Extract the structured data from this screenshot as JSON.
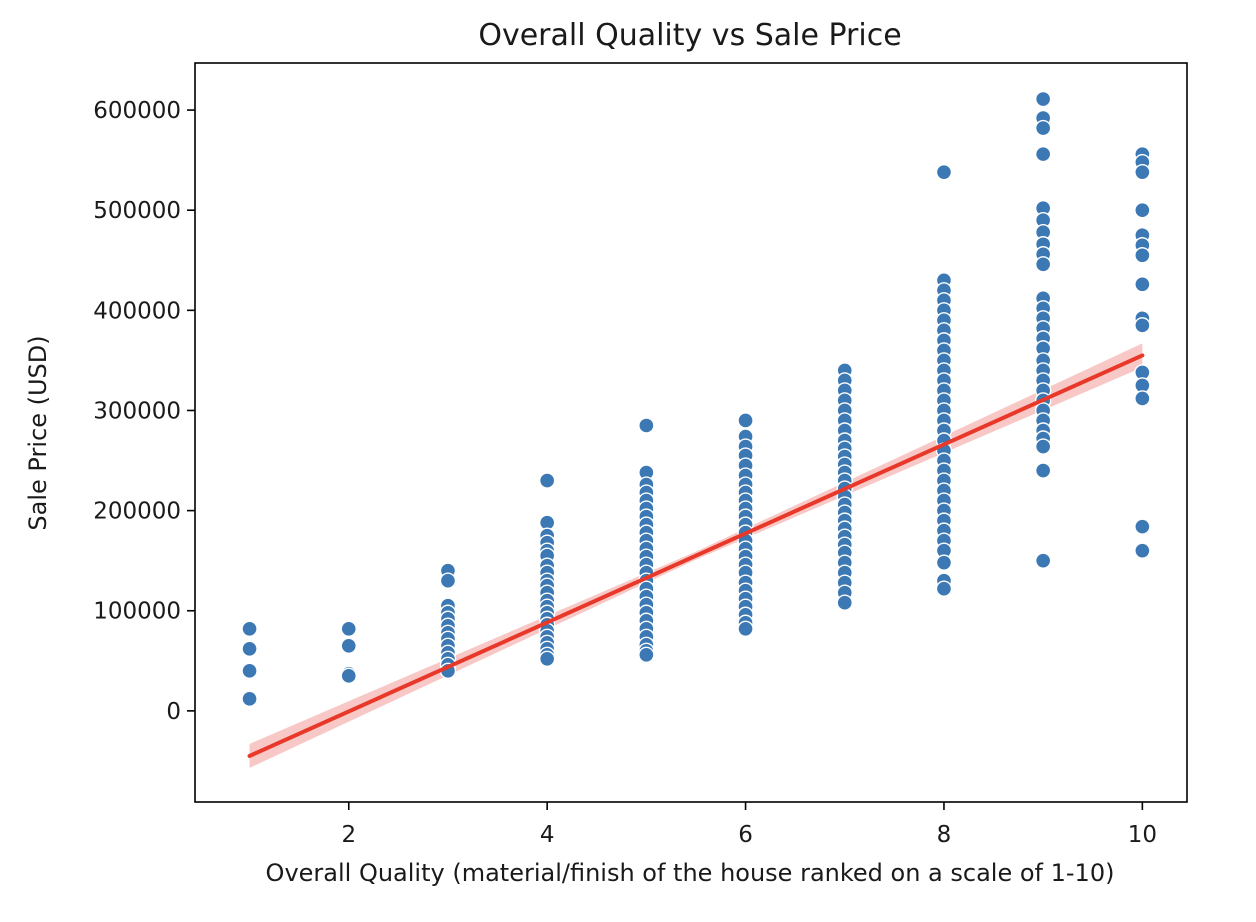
{
  "chart_data": {
    "type": "scatter",
    "title": "Overall Quality vs Sale Price",
    "xlabel": "Overall Quality (material/finish of the house ranked on a scale of 1-10)",
    "ylabel": "Sale Price (USD)",
    "xlim": [
      0.45,
      10.45
    ],
    "ylim": [
      -91000,
      647000
    ],
    "xticks": [
      2,
      4,
      6,
      8,
      10
    ],
    "yticks": [
      0,
      100000,
      200000,
      300000,
      400000,
      500000,
      600000
    ],
    "xtick_labels": [
      "2",
      "4",
      "6",
      "8",
      "10"
    ],
    "ytick_labels": [
      "0",
      "100000",
      "200000",
      "300000",
      "400000",
      "500000",
      "600000"
    ],
    "grid": false,
    "colors": {
      "points": "#3b78b4",
      "regression": "#e8382a",
      "confidence_band": "#f4b6b2"
    },
    "series": [
      {
        "x": 1,
        "values": [
          82000,
          62000,
          40000,
          12000
        ]
      },
      {
        "x": 2,
        "values": [
          82000,
          65000,
          37000,
          35000
        ]
      },
      {
        "x": 3,
        "values": [
          140000,
          130000,
          105000,
          98000,
          92000,
          85000,
          78000,
          72000,
          65000,
          58000,
          52000,
          46000,
          40000
        ]
      },
      {
        "x": 4,
        "values": [
          230000,
          188000,
          175000,
          168000,
          160000,
          155000,
          145000,
          138000,
          130000,
          125000,
          118000,
          110000,
          104000,
          98000,
          92000,
          86000,
          80000,
          74000,
          68000,
          62000,
          56000,
          52000
        ]
      },
      {
        "x": 5,
        "values": [
          285000,
          238000,
          226000,
          218000,
          210000,
          202000,
          194000,
          186000,
          178000,
          170000,
          162000,
          154000,
          146000,
          138000,
          130000,
          122000,
          114000,
          106000,
          98000,
          90000,
          82000,
          74000,
          66000,
          60000,
          56000
        ]
      },
      {
        "x": 6,
        "values": [
          290000,
          274000,
          264000,
          255000,
          245000,
          235000,
          226000,
          218000,
          210000,
          202000,
          194000,
          186000,
          178000,
          170000,
          162000,
          154000,
          146000,
          138000,
          128000,
          120000,
          112000,
          104000,
          96000,
          88000,
          82000
        ]
      },
      {
        "x": 7,
        "values": [
          340000,
          330000,
          320000,
          310000,
          300000,
          290000,
          280000,
          270000,
          262000,
          254000,
          246000,
          238000,
          230000,
          222000,
          214000,
          206000,
          198000,
          190000,
          182000,
          174000,
          166000,
          158000,
          148000,
          138000,
          128000,
          118000,
          108000
        ]
      },
      {
        "x": 8,
        "values": [
          538000,
          430000,
          420000,
          410000,
          400000,
          390000,
          380000,
          370000,
          360000,
          350000,
          340000,
          330000,
          320000,
          310000,
          300000,
          290000,
          280000,
          270000,
          260000,
          250000,
          240000,
          230000,
          220000,
          210000,
          200000,
          190000,
          180000,
          170000,
          160000,
          148000,
          130000,
          122000
        ]
      },
      {
        "x": 9,
        "values": [
          611000,
          592000,
          582000,
          556000,
          502000,
          490000,
          478000,
          466000,
          456000,
          446000,
          412000,
          402000,
          392000,
          382000,
          372000,
          362000,
          350000,
          340000,
          330000,
          320000,
          310000,
          300000,
          290000,
          280000,
          272000,
          264000,
          240000,
          150000
        ]
      },
      {
        "x": 10,
        "values": [
          556000,
          548000,
          538000,
          500000,
          475000,
          465000,
          455000,
          426000,
          392000,
          385000,
          338000,
          325000,
          312000,
          184000,
          160000
        ]
      }
    ],
    "regression": {
      "x": [
        1,
        10
      ],
      "y": [
        -45000,
        355000
      ]
    }
  }
}
